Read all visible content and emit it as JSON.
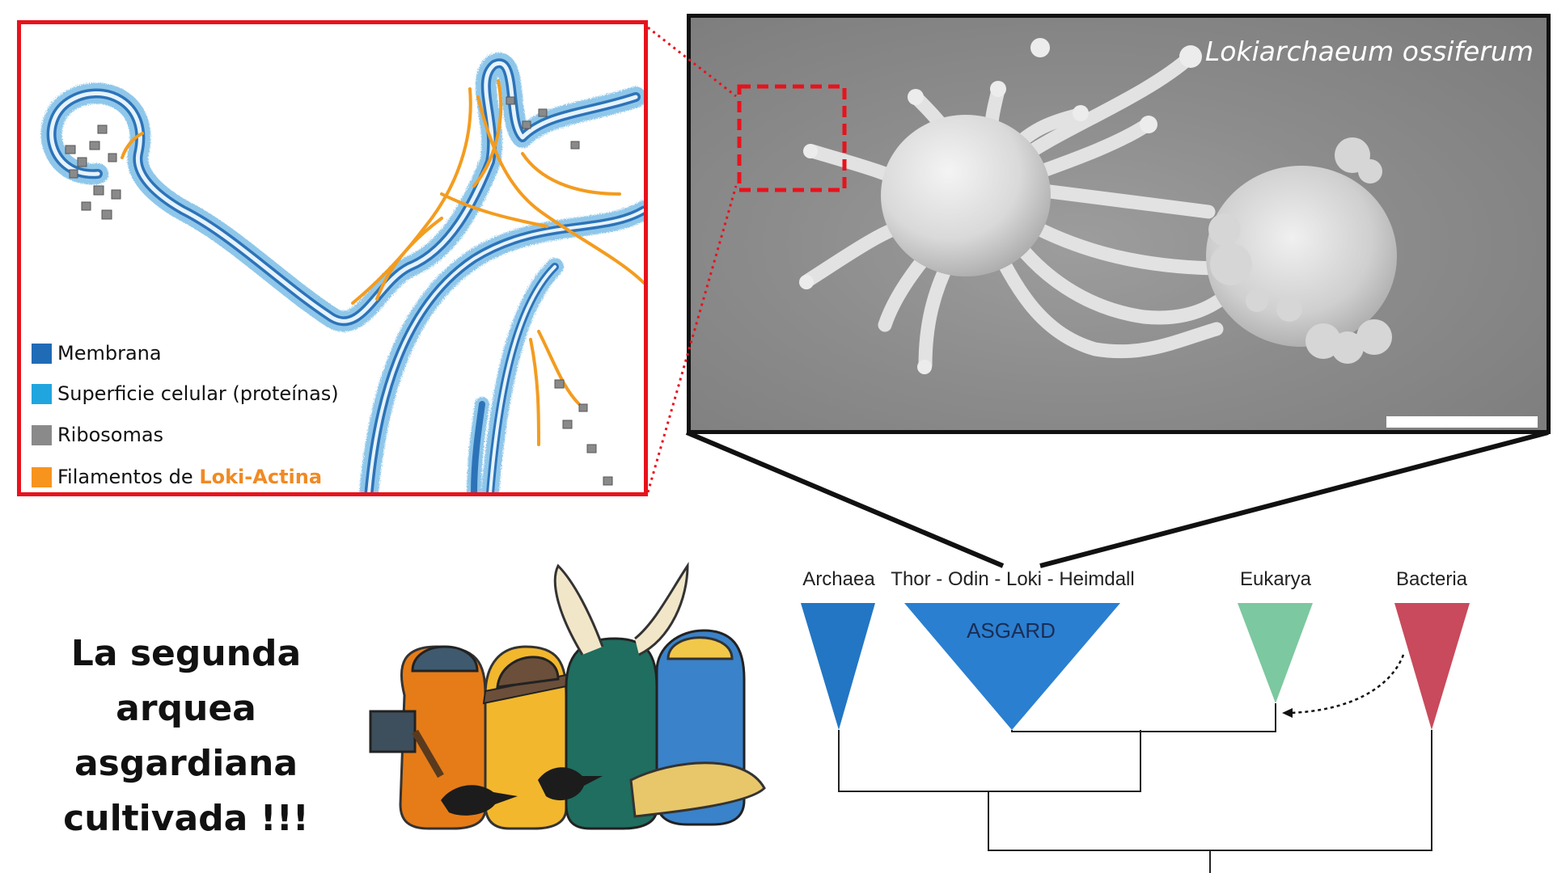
{
  "cryo_panel": {
    "legend": [
      {
        "label": "Membrana",
        "color": "#1f6bb5"
      },
      {
        "label": "Superficie celular (proteínas)",
        "color": "#21a5df"
      },
      {
        "label": "Ribosomas",
        "color": "#8a8a8a"
      },
      {
        "label": "Filamentos de ",
        "highlight": "Loki-Actina",
        "color": "#f7941d"
      }
    ]
  },
  "sem_panel": {
    "title": "Lokiarchaeum ossiferum",
    "colors": {
      "frame": "#111111",
      "zoom_box": "#e8121c"
    }
  },
  "headline": {
    "lines": [
      "La segunda",
      "arquea asgardiana",
      "cultivada !!!"
    ]
  },
  "illustration": {
    "description_icons": [
      "viking-helmet-icon",
      "hammer-icon",
      "raven-icon",
      "horned-helmet-icon",
      "golden-helmet-icon"
    ]
  },
  "tree": {
    "labels": {
      "archaea": "Archaea",
      "asgard_groups": "Thor - Odin - Loki - Heimdall",
      "eukarya": "Eukarya",
      "bacteria": "Bacteria",
      "asgard": "ASGARD"
    },
    "colors": {
      "archaea": "#2276c4",
      "asgard": "#2a7fd0",
      "eukarya": "#7cc8a0",
      "bacteria": "#c84a5c"
    }
  }
}
